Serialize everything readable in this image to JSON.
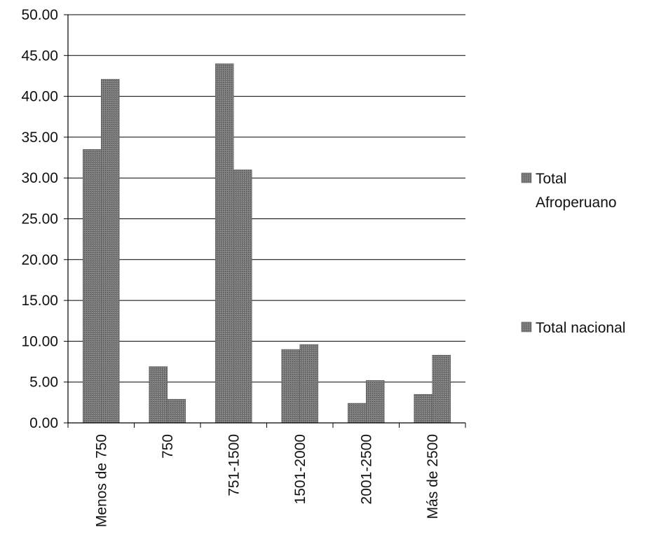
{
  "chart_data": {
    "type": "bar",
    "title": "",
    "xlabel": "",
    "ylabel": "",
    "categories": [
      "Menos de 750",
      "750",
      "751-1500",
      "1501-2000",
      "2001-2500",
      "Más de 2500"
    ],
    "series": [
      {
        "name": "Total Afroperuano",
        "values": [
          33.5,
          6.9,
          44.0,
          9.0,
          2.4,
          3.5
        ]
      },
      {
        "name": "Total nacional",
        "values": [
          42.1,
          2.9,
          31.0,
          9.6,
          5.2,
          8.3
        ]
      }
    ],
    "ylim": [
      0,
      50
    ],
    "yticks": [
      "0.00",
      "5.00",
      "10.00",
      "15.00",
      "20.00",
      "25.00",
      "30.00",
      "35.00",
      "40.00",
      "45.00",
      "50.00"
    ],
    "grid": true,
    "legend_position": "right",
    "legend": {
      "line1": [
        "Total",
        "Afroperuano"
      ],
      "line2": [
        "Total nacional"
      ]
    },
    "colors": {
      "series1": "#6f6f6f",
      "series2": "#6f6f6f",
      "grid": "#000000"
    }
  }
}
